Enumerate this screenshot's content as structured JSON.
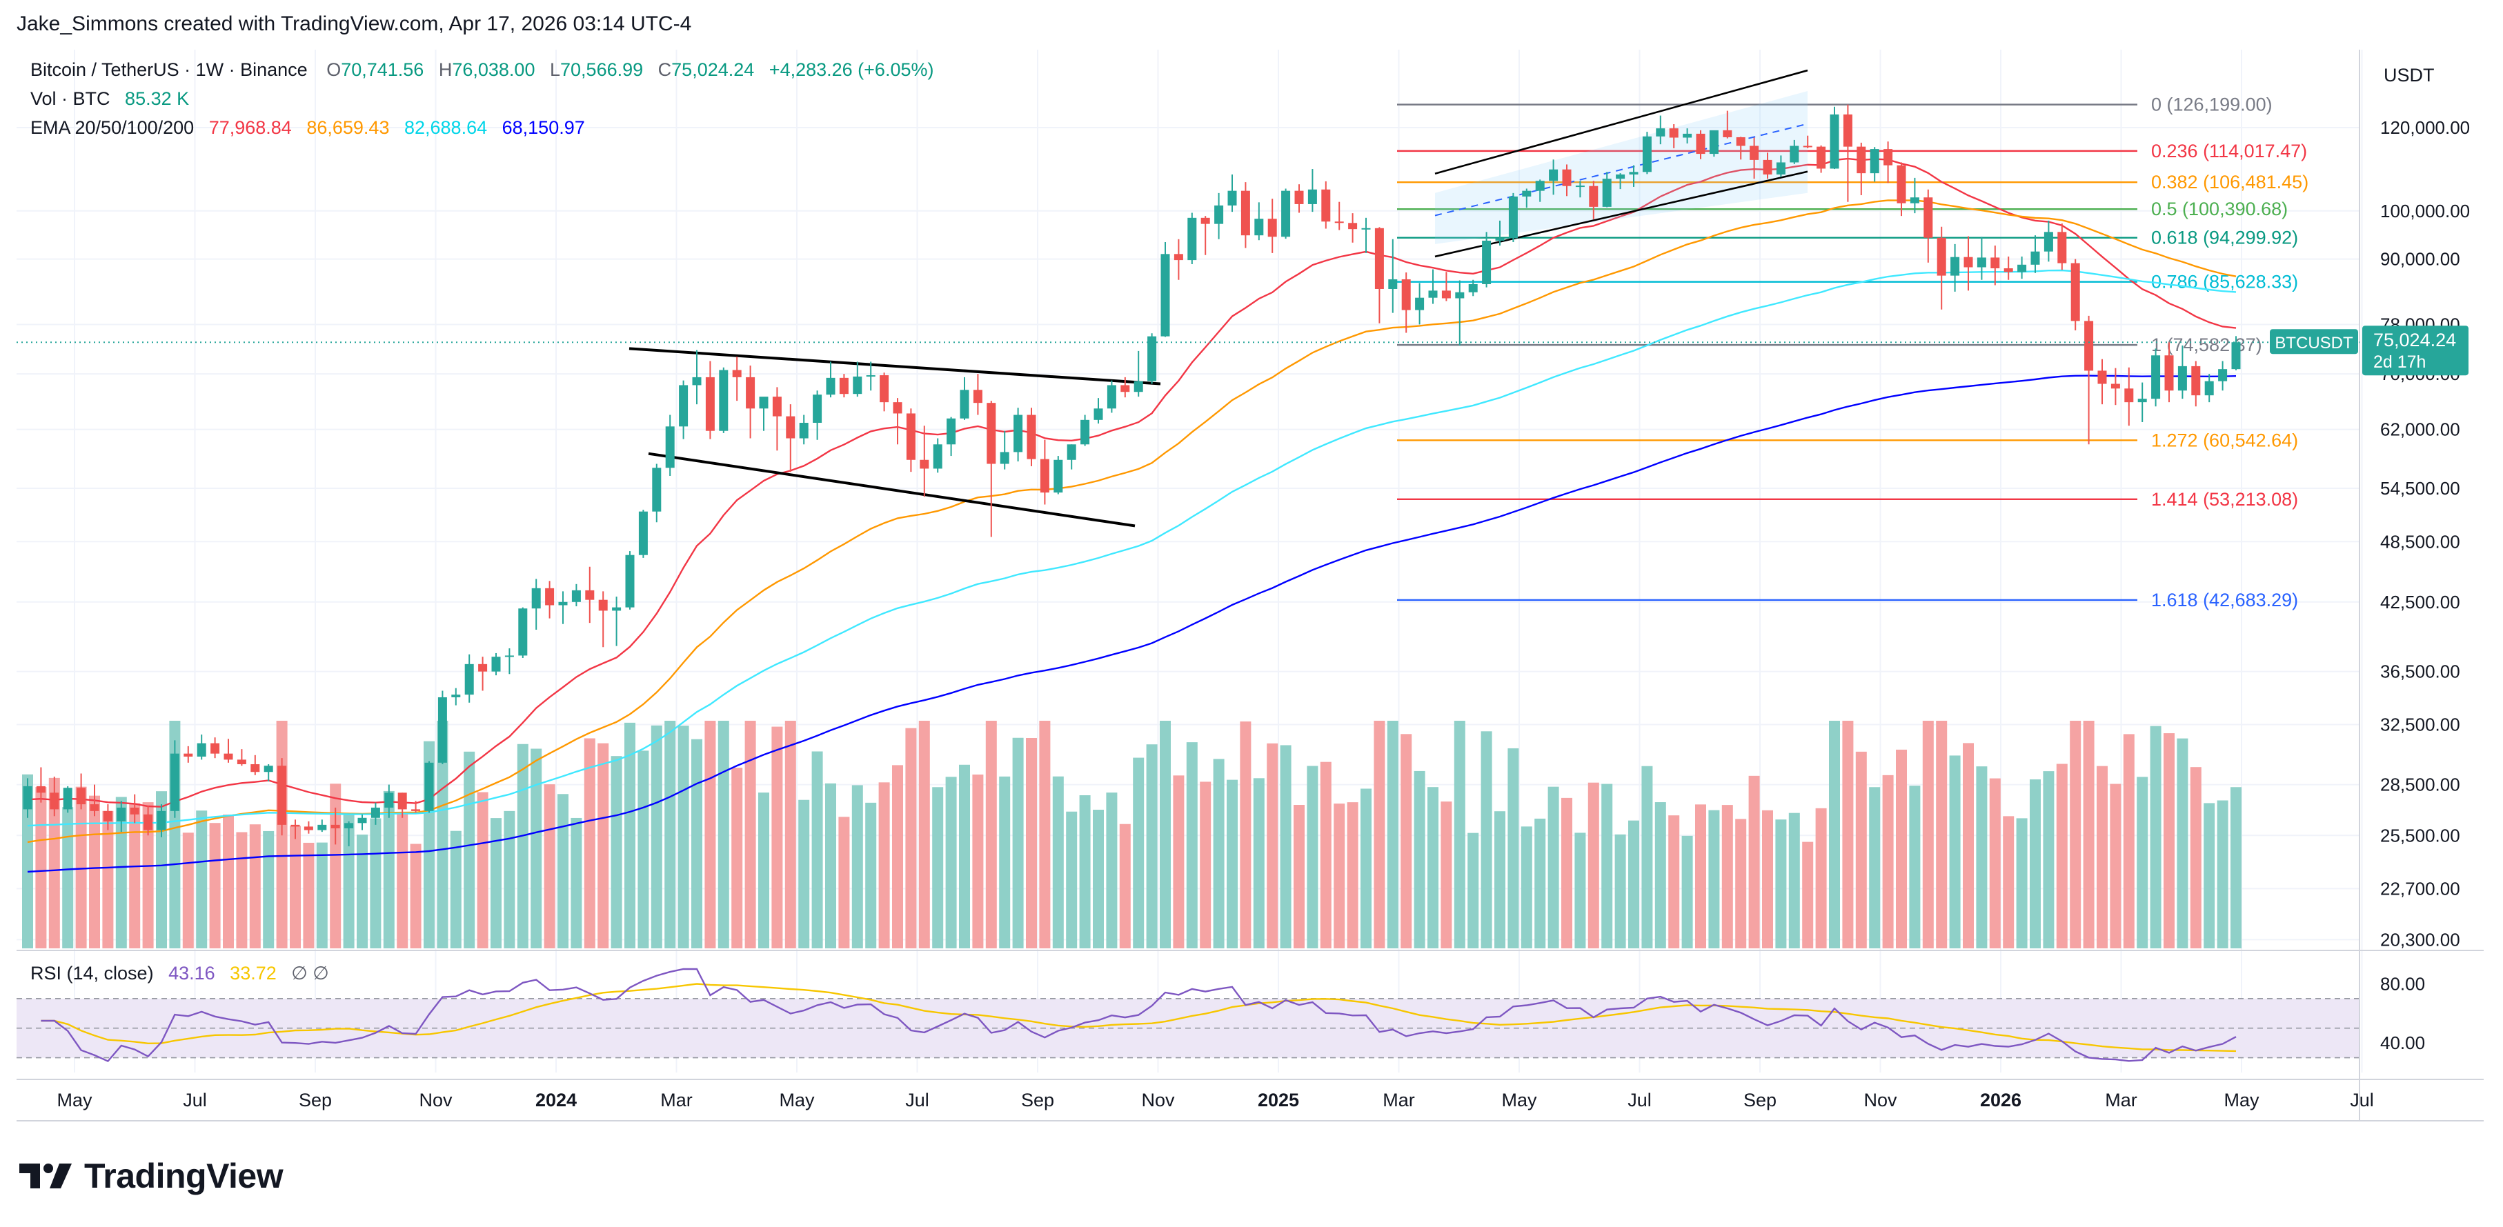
{
  "credit": "Jake_Simmons created with TradingView.com, Apr 17, 2026 03:14 UTC-4",
  "legend": {
    "symbol": "Bitcoin / TetherUS · 1W · Binance",
    "ohlc": {
      "o_label": "O",
      "o": "70,741.56",
      "h_label": "H",
      "h": "76,038.00",
      "l_label": "L",
      "l": "70,566.99",
      "c_label": "C",
      "c": "75,024.24",
      "change": "+4,283.26 (+6.05%)"
    },
    "vol_label": "Vol · BTC",
    "vol_value": "85.32 K",
    "ema_label": "EMA 20/50/100/200",
    "ema_values": [
      {
        "value": "77,968.84",
        "color": "#f23645"
      },
      {
        "value": "86,659.43",
        "color": "#ff9800"
      },
      {
        "value": "82,688.64",
        "color": "#00e5ff"
      },
      {
        "value": "68,150.97",
        "color": "#0000ff"
      }
    ],
    "rsi_label": "RSI (14, close)",
    "rsi_value": "43.16",
    "rsi_value_color": "#7e57c2",
    "rsi_ma": "33.72",
    "rsi_ma_color": "#f7c600",
    "rsi_extra": "∅ ∅"
  },
  "price_axis": {
    "unit_label": "USDT",
    "ticks": [
      "120,000.00",
      "100,000.00",
      "90,000.00",
      "78,000.00",
      "70,000.00",
      "62,000.00",
      "54,500.00",
      "48,500.00",
      "42,500.00",
      "36,500.00",
      "32,500.00",
      "28,500.00",
      "25,500.00",
      "22,700.00",
      "20,300.00"
    ],
    "last_price_label": "BTCUSDT",
    "last_price": "75,024.24",
    "countdown": "2d 17h"
  },
  "rsi_axis": {
    "ticks": [
      "80.00",
      "40.00"
    ]
  },
  "time_axis": [
    "May",
    "Jul",
    "Sep",
    "Nov",
    "2024",
    "Mar",
    "May",
    "Jul",
    "Sep",
    "Nov",
    "2025",
    "Mar",
    "May",
    "Jul",
    "Sep",
    "Nov",
    "2026",
    "Mar",
    "May",
    "Jul"
  ],
  "fib_levels": [
    {
      "label": "0 (126,199.00)",
      "color": "#787b86"
    },
    {
      "label": "0.236 (114,017.47)",
      "color": "#f23645"
    },
    {
      "label": "0.382 (106,481.45)",
      "color": "#ff9800"
    },
    {
      "label": "0.5 (100,390.68)",
      "color": "#4caf50"
    },
    {
      "label": "0.618 (94,299.92)",
      "color": "#089981"
    },
    {
      "label": "0.786 (85,628.33)",
      "color": "#00bcd4"
    },
    {
      "label": "1 (74,582.37)",
      "color": "#787b86"
    },
    {
      "label": "1.272 (60,542.64)",
      "color": "#ff9800"
    },
    {
      "label": "1.414 (53,213.08)",
      "color": "#f23645"
    },
    {
      "label": "1.618 (42,683.29)",
      "color": "#2962ff"
    }
  ],
  "brand": "TradingView",
  "colors": {
    "up": "#26a69a",
    "down": "#ef5350",
    "up_vol": "#8fd0c8",
    "down_vol": "#f5a3a3",
    "rsi_band": "#ede7f6",
    "grid": "#f0f3fa"
  },
  "chart_data": {
    "type": "candlestick",
    "timeframe": "1W",
    "price_scale": "log",
    "candles_ohlc": [
      [
        27000,
        28900,
        26500,
        28400
      ],
      [
        28400,
        29600,
        27400,
        28000
      ],
      [
        28000,
        29000,
        26600,
        27000
      ],
      [
        27000,
        28400,
        26800,
        28300
      ],
      [
        28300,
        29200,
        27000,
        27300
      ],
      [
        27300,
        28500,
        26600,
        26900
      ],
      [
        26900,
        27300,
        25800,
        26300
      ],
      [
        26300,
        27500,
        25700,
        27100
      ],
      [
        27100,
        27900,
        26200,
        26700
      ],
      [
        26700,
        27200,
        25500,
        25800
      ],
      [
        25800,
        27300,
        25400,
        26900
      ],
      [
        26900,
        31400,
        26500,
        30500
      ],
      [
        30500,
        31000,
        29900,
        30300
      ],
      [
        30300,
        31800,
        30100,
        31200
      ],
      [
        31200,
        31600,
        30200,
        30500
      ],
      [
        30500,
        31500,
        29900,
        30100
      ],
      [
        30100,
        30800,
        29700,
        29800
      ],
      [
        29800,
        30400,
        29100,
        29300
      ],
      [
        29300,
        29800,
        28700,
        29700
      ],
      [
        29700,
        30200,
        25500,
        26100
      ],
      [
        26100,
        26400,
        25300,
        26000
      ],
      [
        26000,
        26300,
        25600,
        25800
      ],
      [
        25800,
        26400,
        25700,
        26100
      ],
      [
        26100,
        27100,
        25000,
        25900
      ],
      [
        25900,
        26300,
        24900,
        26200
      ],
      [
        26200,
        26700,
        25800,
        26500
      ],
      [
        26500,
        27400,
        26100,
        27100
      ],
      [
        27100,
        28500,
        26500,
        28000
      ],
      [
        28000,
        28000,
        26500,
        27000
      ],
      [
        27000,
        27500,
        26800,
        26900
      ],
      [
        26900,
        30000,
        26800,
        29900
      ],
      [
        29900,
        35000,
        29800,
        34500
      ],
      [
        34500,
        35200,
        33900,
        34700
      ],
      [
        34700,
        37900,
        34100,
        37100
      ],
      [
        37100,
        37700,
        35000,
        36500
      ],
      [
        36500,
        38000,
        36200,
        37700
      ],
      [
        37700,
        38400,
        36300,
        37800
      ],
      [
        37800,
        42000,
        37600,
        41900
      ],
      [
        41900,
        44700,
        40000,
        43800
      ],
      [
        43800,
        44500,
        41000,
        42200
      ],
      [
        42200,
        43500,
        40500,
        42500
      ],
      [
        42500,
        44200,
        42100,
        43600
      ],
      [
        43600,
        45900,
        40600,
        42700
      ],
      [
        42700,
        43500,
        38500,
        41700
      ],
      [
        41700,
        43000,
        38600,
        42000
      ],
      [
        42000,
        47500,
        41800,
        47100
      ],
      [
        47100,
        52000,
        46800,
        51800
      ],
      [
        51800,
        57500,
        50600,
        57000
      ],
      [
        57000,
        64000,
        56000,
        62400
      ],
      [
        62400,
        69000,
        60700,
        68300
      ],
      [
        68300,
        73750,
        65500,
        69500
      ],
      [
        69500,
        72000,
        60700,
        61800
      ],
      [
        61800,
        71000,
        61500,
        70600
      ],
      [
        70600,
        72700,
        66000,
        69500
      ],
      [
        69500,
        71300,
        60800,
        64900
      ],
      [
        64900,
        66500,
        61800,
        66600
      ],
      [
        66600,
        68000,
        59200,
        63800
      ],
      [
        63800,
        65500,
        56500,
        60800
      ],
      [
        60800,
        64000,
        60000,
        62900
      ],
      [
        62900,
        67500,
        60600,
        66900
      ],
      [
        66900,
        71900,
        66500,
        69400
      ],
      [
        69400,
        70000,
        66500,
        67000
      ],
      [
        67000,
        71900,
        66600,
        69600
      ],
      [
        69600,
        71900,
        67500,
        69800
      ],
      [
        69800,
        70200,
        64500,
        65800
      ],
      [
        65800,
        66400,
        60000,
        64200
      ],
      [
        64200,
        64900,
        56500,
        58000
      ],
      [
        58000,
        62500,
        53500,
        56900
      ],
      [
        56900,
        60800,
        56400,
        60000
      ],
      [
        60000,
        63700,
        58500,
        63500
      ],
      [
        63500,
        69500,
        63300,
        67600
      ],
      [
        67600,
        70000,
        64000,
        65700
      ],
      [
        65700,
        66000,
        49000,
        57500
      ],
      [
        57500,
        61800,
        56800,
        59000
      ],
      [
        59000,
        65000,
        57800,
        64000
      ],
      [
        64000,
        65000,
        57200,
        58100
      ],
      [
        58100,
        60600,
        52600,
        54000
      ],
      [
        54000,
        58500,
        53800,
        58000
      ],
      [
        58000,
        60000,
        56800,
        60000
      ],
      [
        60000,
        64000,
        59800,
        63300
      ],
      [
        63300,
        66400,
        62800,
        64900
      ],
      [
        64900,
        69000,
        64300,
        68300
      ],
      [
        68300,
        69500,
        66500,
        67300
      ],
      [
        67300,
        73600,
        66600,
        68900
      ],
      [
        68900,
        76500,
        68500,
        76000
      ],
      [
        76000,
        93400,
        75900,
        91000
      ],
      [
        91000,
        94000,
        86000,
        89800
      ],
      [
        89800,
        99600,
        89000,
        98500
      ],
      [
        98500,
        98900,
        90800,
        97200
      ],
      [
        97200,
        104000,
        94000,
        101200
      ],
      [
        101200,
        108300,
        99800,
        104500
      ],
      [
        104500,
        106500,
        92200,
        94800
      ],
      [
        94800,
        101900,
        93800,
        98300
      ],
      [
        98300,
        102700,
        91200,
        94500
      ],
      [
        94500,
        105000,
        94100,
        104500
      ],
      [
        104500,
        106000,
        99600,
        101500
      ],
      [
        101500,
        109600,
        99800,
        104800
      ],
      [
        104800,
        106700,
        96200,
        97700
      ],
      [
        97700,
        102000,
        95900,
        97400
      ],
      [
        97400,
        99500,
        93300,
        96100
      ],
      [
        96100,
        98500,
        91200,
        96300
      ],
      [
        96300,
        96500,
        78200,
        84300
      ],
      [
        84300,
        94000,
        80000,
        86100
      ],
      [
        86100,
        87400,
        76600,
        80500
      ],
      [
        80500,
        85400,
        78000,
        82700
      ],
      [
        82700,
        88000,
        81600,
        84000
      ],
      [
        84000,
        87500,
        82100,
        82600
      ],
      [
        82600,
        85900,
        74500,
        83700
      ],
      [
        83700,
        86000,
        83000,
        85200
      ],
      [
        85200,
        95500,
        84600,
        93700
      ],
      [
        93700,
        97900,
        92700,
        94200
      ],
      [
        94200,
        104000,
        93400,
        103200
      ],
      [
        103200,
        105000,
        100700,
        104500
      ],
      [
        104500,
        107100,
        102000,
        106800
      ],
      [
        106800,
        111900,
        103600,
        109500
      ],
      [
        109500,
        110700,
        103300,
        105600
      ],
      [
        105600,
        106800,
        103000,
        105700
      ],
      [
        105600,
        106800,
        98200,
        100900
      ],
      [
        100900,
        108900,
        100800,
        107300
      ],
      [
        107300,
        108600,
        104900,
        108300
      ],
      [
        108300,
        110500,
        105400,
        108900
      ],
      [
        108900,
        118900,
        108400,
        117700
      ],
      [
        117700,
        123200,
        115700,
        119800
      ],
      [
        119800,
        120900,
        114700,
        117400
      ],
      [
        117400,
        119800,
        115900,
        118400
      ],
      [
        118400,
        119300,
        112000,
        113300
      ],
      [
        113300,
        119000,
        112600,
        119300
      ],
      [
        119300,
        124500,
        117200,
        117500
      ],
      [
        117500,
        117600,
        111900,
        115300
      ],
      [
        115300,
        117400,
        107300,
        111800
      ],
      [
        111800,
        113600,
        107300,
        108300
      ],
      [
        108300,
        112900,
        107700,
        111200
      ],
      [
        111200,
        116800,
        110800,
        115300
      ],
      [
        115300,
        117900,
        114700,
        115100
      ],
      [
        115100,
        115400,
        108700,
        109700
      ],
      [
        109700,
        125600,
        109600,
        123500
      ],
      [
        123500,
        126199,
        102000,
        115100
      ],
      [
        115100,
        116100,
        103500,
        108600
      ],
      [
        108600,
        115000,
        106600,
        114500
      ],
      [
        114500,
        116400,
        106300,
        110500
      ],
      [
        110500,
        111200,
        98900,
        101700
      ],
      [
        101700,
        107500,
        99500,
        103000
      ],
      [
        103000,
        104800,
        89300,
        94300
      ],
      [
        94300,
        96600,
        80600,
        86800
      ],
      [
        86800,
        93000,
        83800,
        90400
      ],
      [
        90400,
        94600,
        84000,
        88400
      ],
      [
        88400,
        94500,
        86000,
        90300
      ],
      [
        90300,
        92700,
        85000,
        88200
      ],
      [
        88200,
        90500,
        86000,
        87500
      ],
      [
        87500,
        90500,
        86200,
        88900
      ],
      [
        88900,
        94800,
        87300,
        91500
      ],
      [
        91500,
        97900,
        89500,
        95500
      ],
      [
        95500,
        97300,
        87900,
        89200
      ],
      [
        89200,
        90000,
        77000,
        78600
      ],
      [
        78600,
        79500,
        60000,
        70500
      ],
      [
        70500,
        72300,
        65500,
        68500
      ],
      [
        68500,
        70900,
        65400,
        67800
      ],
      [
        67800,
        71000,
        62500,
        65800
      ],
      [
        65800,
        68700,
        63000,
        66300
      ],
      [
        66300,
        74000,
        65200,
        72900
      ],
      [
        72900,
        75000,
        65800,
        67500
      ],
      [
        67500,
        74500,
        66300,
        71200
      ],
      [
        71200,
        72000,
        65200,
        66800
      ],
      [
        66800,
        70000,
        65800,
        68900
      ],
      [
        68900,
        72000,
        67500,
        70741
      ],
      [
        70741,
        76038,
        70566,
        75024
      ]
    ],
    "ema_series": [
      {
        "name": "EMA 20",
        "color": "#f23645",
        "last": 77968.84
      },
      {
        "name": "EMA 50",
        "color": "#ff9800",
        "last": 86659.43
      },
      {
        "name": "EMA 100",
        "color": "#00e5ff",
        "last": 82688.64
      },
      {
        "name": "EMA 200",
        "color": "#0000ff",
        "last": 68150.97
      }
    ],
    "rsi": {
      "period": 14,
      "last": 43.16,
      "ma_last": 33.72,
      "overbought": 70,
      "oversold": 30
    },
    "fib_retracement": {
      "high": 126199.0,
      "low": 74582.37,
      "levels": [
        0,
        0.236,
        0.382,
        0.5,
        0.618,
        0.786,
        1,
        1.272,
        1.414,
        1.618
      ]
    }
  }
}
